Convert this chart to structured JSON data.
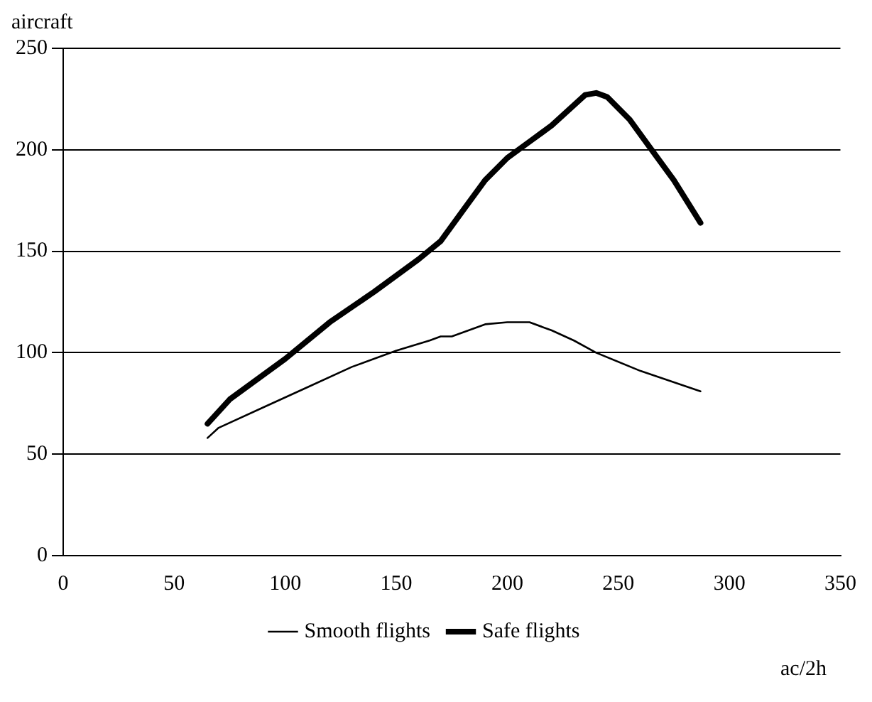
{
  "chart_data": {
    "type": "line",
    "xlabel": "ac/2h",
    "ylabel": "aircraft",
    "xlim": [
      0,
      350
    ],
    "xticks": [
      0,
      50,
      100,
      150,
      200,
      250,
      300,
      350
    ],
    "ylim": [
      0,
      250
    ],
    "yticks": [
      0,
      50,
      100,
      150,
      200,
      250
    ],
    "grid": "y",
    "legend": "bottom",
    "marker": "none",
    "series": [
      {
        "name": "Smooth flights",
        "color": "#000000",
        "x": [
          65,
          70,
          90,
          110,
          130,
          150,
          165,
          170,
          175,
          190,
          200,
          210,
          220,
          230,
          240,
          260,
          287
        ],
        "values": [
          58,
          63,
          73,
          83,
          93,
          101,
          106,
          108,
          108,
          114,
          115,
          115,
          111,
          106,
          100,
          91,
          81
        ]
      },
      {
        "name": "Safe flights",
        "color": "#000000",
        "x": [
          65,
          75,
          100,
          120,
          140,
          160,
          170,
          180,
          190,
          200,
          210,
          220,
          230,
          235,
          240,
          245,
          255,
          265,
          275,
          287
        ],
        "values": [
          65,
          77,
          97,
          115,
          130,
          146,
          155,
          170,
          185,
          196,
          204,
          212,
          222,
          227,
          228,
          226,
          215,
          200,
          185,
          164
        ]
      }
    ]
  }
}
